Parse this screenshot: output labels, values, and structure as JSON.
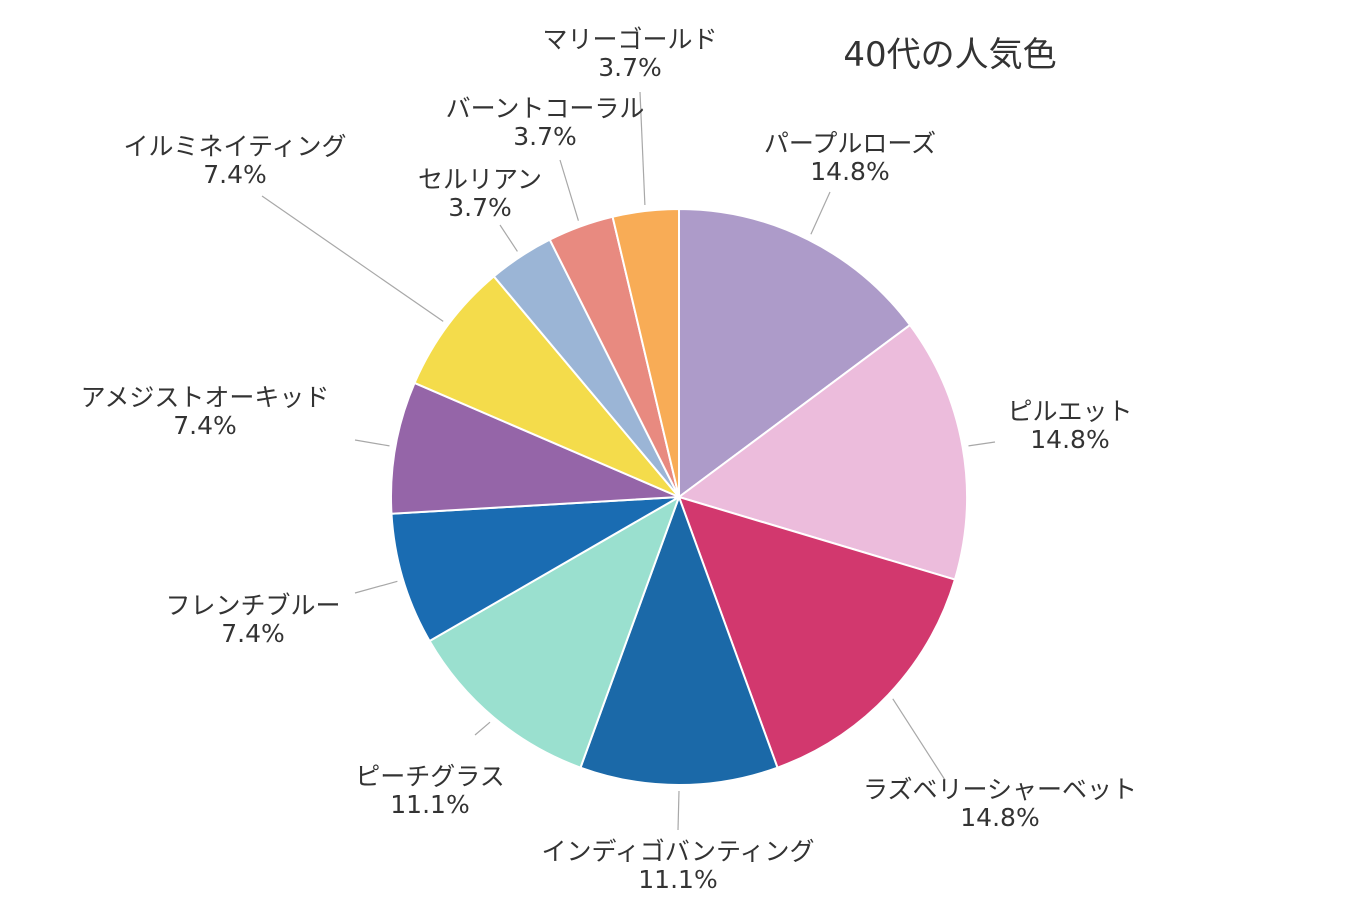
{
  "chart_data": {
    "type": "pie",
    "title": "40代の人気色",
    "slices": [
      {
        "label": "パープルローズ",
        "value": 14.8,
        "value_label": "14.8%",
        "color": "#ad9bc9"
      },
      {
        "label": "ピルエット",
        "value": 14.8,
        "value_label": "14.8%",
        "color": "#ecbcdc"
      },
      {
        "label": "ラズベリーシャーベット",
        "value": 14.8,
        "value_label": "14.8%",
        "color": "#d2386e"
      },
      {
        "label": "インディゴバンティング",
        "value": 11.1,
        "value_label": "11.1%",
        "color": "#1b69a8"
      },
      {
        "label": "ピーチグラス",
        "value": 11.1,
        "value_label": "11.1%",
        "color": "#9ae0cf"
      },
      {
        "label": "フレンチブルー",
        "value": 7.4,
        "value_label": "7.4%",
        "color": "#1a6cb2"
      },
      {
        "label": "アメジストオーキッド",
        "value": 7.4,
        "value_label": "7.4%",
        "color": "#9565a8"
      },
      {
        "label": "イルミネイティング",
        "value": 7.4,
        "value_label": "7.4%",
        "color": "#f4dc4b"
      },
      {
        "label": "セルリアン",
        "value": 3.7,
        "value_label": "3.7%",
        "color": "#9bb5d6"
      },
      {
        "label": "バーントコーラル",
        "value": 3.7,
        "value_label": "3.7%",
        "color": "#e88a80"
      },
      {
        "label": "マリーゴールド",
        "value": 3.7,
        "value_label": "3.7%",
        "color": "#f8ac56"
      }
    ],
    "start": "12 o'clock",
    "direction": "clockwise",
    "legend": "none (labels beside slices)"
  }
}
